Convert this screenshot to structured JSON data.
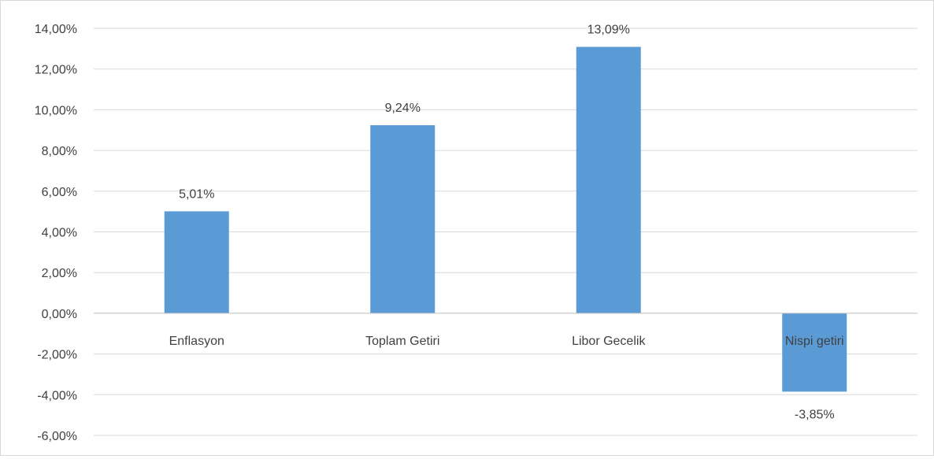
{
  "chart_data": {
    "type": "bar",
    "title": "",
    "xlabel": "",
    "ylabel": "",
    "categories": [
      "Enflasyon",
      "Toplam Getiri",
      "Libor Gecelik",
      "Nispi getiri"
    ],
    "values": [
      5.01,
      9.24,
      13.09,
      -3.85
    ],
    "data_labels": [
      "5,01%",
      "9,24%",
      "13,09%",
      "-3,85%"
    ],
    "ylim": [
      -6,
      14
    ],
    "yticks": [
      14,
      12,
      10,
      8,
      6,
      4,
      2,
      0,
      -2,
      -4,
      -6
    ],
    "ytick_labels": [
      "14,00%",
      "12,00%",
      "10,00%",
      "8,00%",
      "6,00%",
      "4,00%",
      "2,00%",
      "0,00%",
      "-2,00%",
      "-4,00%",
      "-6,00%"
    ],
    "grid": true,
    "legend": "none",
    "bar_color": "#5b9bd5",
    "grid_color": "#d9d9d9",
    "text_color": "#404040"
  }
}
